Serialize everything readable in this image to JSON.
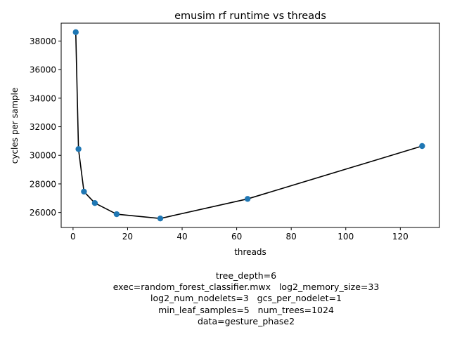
{
  "chart_data": {
    "type": "line",
    "title": "emusim rf runtime vs threads",
    "xlabel": "threads",
    "ylabel": "cycles per sample",
    "xlim": [
      -4.35,
      134.35
    ],
    "ylim": [
      24950,
      39250
    ],
    "x_ticks": [
      0,
      20,
      40,
      60,
      80,
      100,
      120
    ],
    "y_ticks": [
      26000,
      28000,
      30000,
      32000,
      34000,
      36000,
      38000
    ],
    "grid": false,
    "legend": "none",
    "series": [
      {
        "x": [
          1,
          2,
          4,
          8,
          16,
          32,
          64,
          128
        ],
        "y": [
          38620,
          30440,
          27460,
          26660,
          25880,
          25580,
          26950,
          30650
        ],
        "line_color": "#000000",
        "marker_color": "#1f77b4"
      }
    ],
    "caption_lines": [
      "tree_depth=6",
      "exec=random_forest_classifier.mwx   log2_memory_size=33",
      "log2_num_nodelets=3   gcs_per_nodelet=1",
      "min_leaf_samples=5   num_trees=1024",
      "data=gesture_phase2"
    ]
  }
}
